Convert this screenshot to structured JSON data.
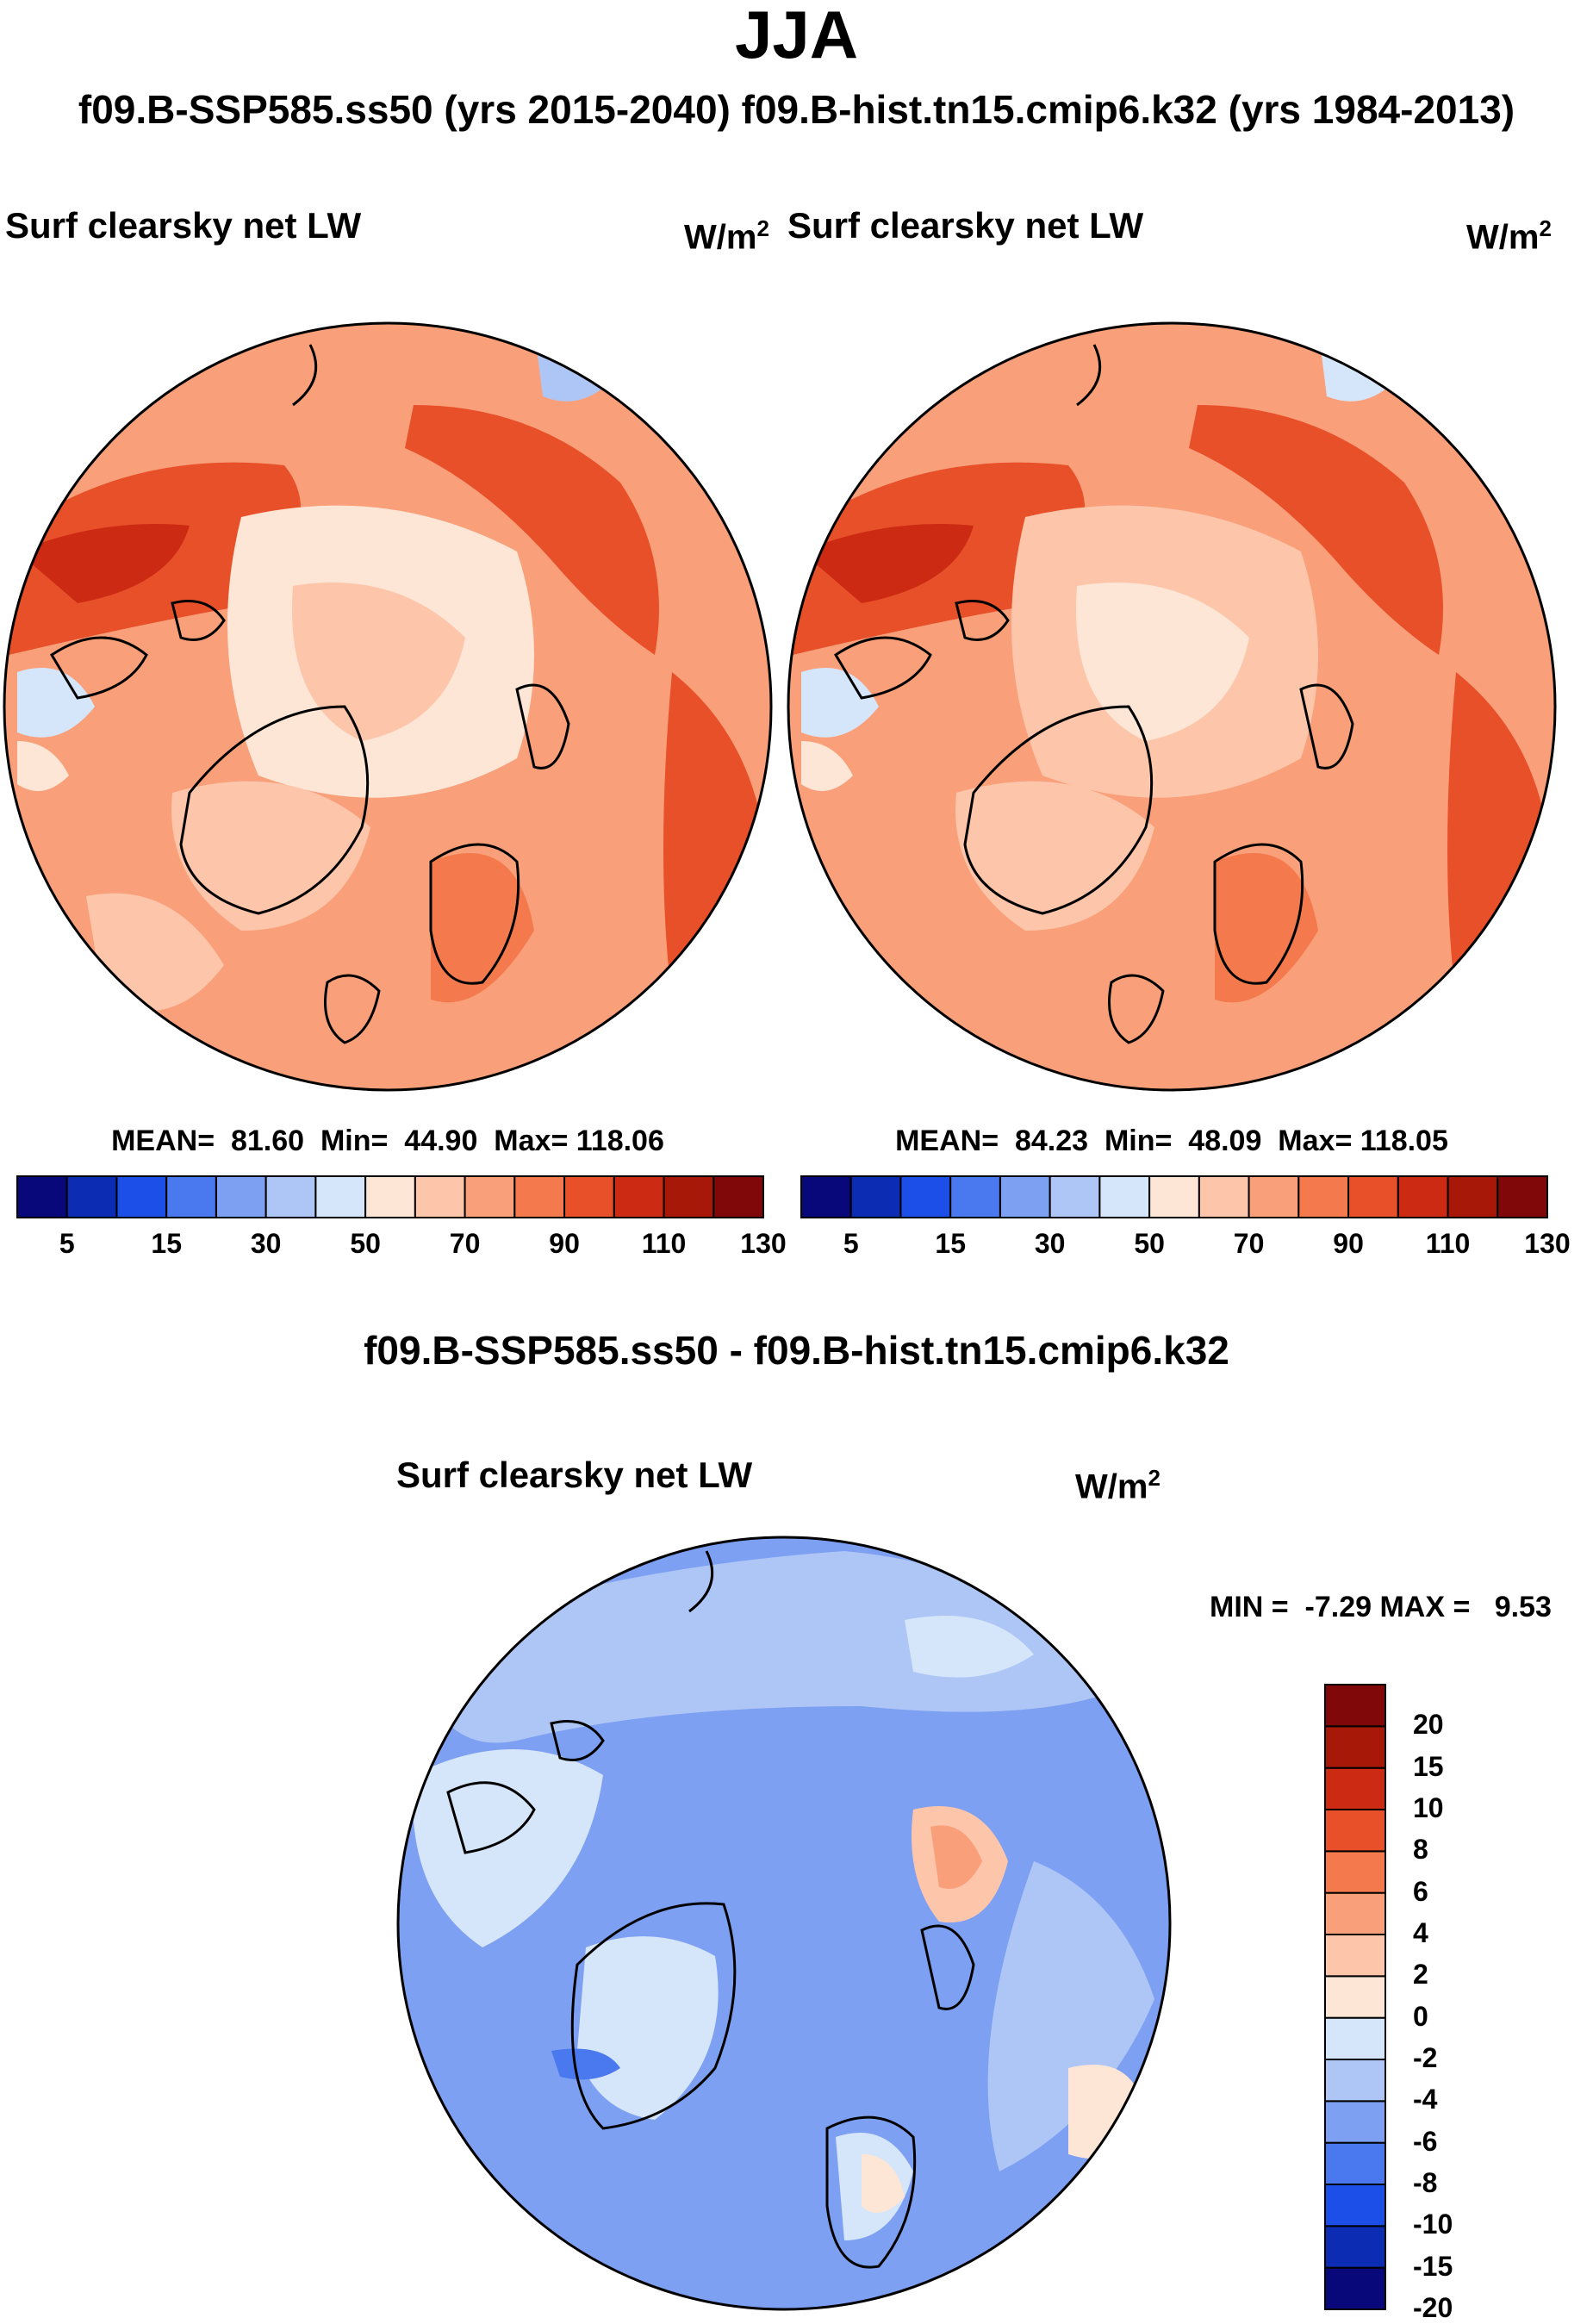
{
  "figure": {
    "season": "JJA",
    "subtitle": "f09.B-SSP585.ss50 (yrs 2015-2040)  f09.B-hist.tn15.cmip6.k32 (yrs 1984-2013)",
    "diff_title": "f09.B-SSP585.ss50 - f09.B-hist.tn15.cmip6.k32"
  },
  "panels": [
    {
      "variable": "Surf clearsky net LW",
      "units_base": "W/m",
      "units_exp": "2",
      "mean_label": "MEAN=",
      "mean": "81.60",
      "min_label": "Min=",
      "min": "44.90",
      "max_label": "Max=",
      "max": "118.06"
    },
    {
      "variable": "Surf clearsky net LW",
      "units_base": "W/m",
      "units_exp": "2",
      "mean_label": "MEAN=",
      "mean": "84.23",
      "min_label": "Min=",
      "min": "48.09",
      "max_label": "Max=",
      "max": "118.05"
    }
  ],
  "diff_panel": {
    "variable": "Surf clearsky net LW",
    "units_base": "W/m",
    "units_exp": "2",
    "min_label": "MIN =",
    "min": "-7.29",
    "max_label": "MAX =",
    "max": "9.53"
  },
  "chart_data": [
    {
      "type": "heatmap",
      "projection": "north polar stereographic",
      "title": "Surf clearsky net LW",
      "units": "W/m2",
      "period": "f09.B-SSP585.ss50 (yrs 2015-2040)",
      "stats": {
        "mean": 81.6,
        "min": 44.9,
        "max": 118.06
      },
      "colorbar_levels": [
        5,
        10,
        15,
        20,
        30,
        40,
        50,
        60,
        70,
        80,
        90,
        100,
        110,
        120,
        130
      ],
      "colorbar_tick_labels": [
        "5",
        "15",
        "30",
        "50",
        "70",
        "90",
        "110",
        "130"
      ],
      "colors": [
        "#08087a",
        "#0c2cb4",
        "#1c4ee8",
        "#4a78ee",
        "#7ea0f2",
        "#aec6f6",
        "#d6e6fa",
        "#fde6d6",
        "#fdc6aa",
        "#f9a07a",
        "#f47a4e",
        "#e8502a",
        "#cc2a12",
        "#a81808",
        "#800808"
      ]
    },
    {
      "type": "heatmap",
      "projection": "north polar stereographic",
      "title": "Surf clearsky net LW",
      "units": "W/m2",
      "period": "f09.B-hist.tn15.cmip6.k32 (yrs 1984-2013)",
      "stats": {
        "mean": 84.23,
        "min": 48.09,
        "max": 118.05
      },
      "colorbar_levels": [
        5,
        10,
        15,
        20,
        30,
        40,
        50,
        60,
        70,
        80,
        90,
        100,
        110,
        120,
        130
      ],
      "colorbar_tick_labels": [
        "5",
        "15",
        "30",
        "50",
        "70",
        "90",
        "110",
        "130"
      ],
      "colors": [
        "#08087a",
        "#0c2cb4",
        "#1c4ee8",
        "#4a78ee",
        "#7ea0f2",
        "#aec6f6",
        "#d6e6fa",
        "#fde6d6",
        "#fdc6aa",
        "#f9a07a",
        "#f47a4e",
        "#e8502a",
        "#cc2a12",
        "#a81808",
        "#800808"
      ]
    },
    {
      "type": "heatmap",
      "projection": "north polar stereographic",
      "title": "Surf clearsky net LW",
      "units": "W/m2",
      "period": "f09.B-SSP585.ss50 - f09.B-hist.tn15.cmip6.k32",
      "stats": {
        "min": -7.29,
        "max": 9.53
      },
      "colorbar_levels": [
        -20,
        -15,
        -10,
        -8,
        -6,
        -4,
        -2,
        0,
        2,
        4,
        6,
        8,
        10,
        15,
        20
      ],
      "colorbar_tick_labels": [
        "20",
        "15",
        "10",
        "8",
        "6",
        "4",
        "2",
        "0",
        "-2",
        "-4",
        "-6",
        "-8",
        "-10",
        "-15",
        "-20"
      ],
      "colors": [
        "#08087a",
        "#0c2cb4",
        "#1c4ee8",
        "#4a78ee",
        "#7ea0f2",
        "#aec6f6",
        "#d6e6fa",
        "#fde6d6",
        "#fdc6aa",
        "#f9a07a",
        "#f47a4e",
        "#e8502a",
        "#cc2a12",
        "#a81808",
        "#800808"
      ]
    }
  ]
}
